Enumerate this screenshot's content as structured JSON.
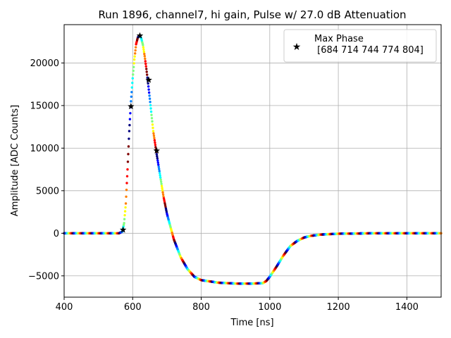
{
  "chart_data": {
    "type": "scatter",
    "title": "Run 1896, channel7, hi gain, Pulse w/ 27.0 dB Attenuation",
    "xlabel": "Time [ns]",
    "ylabel": "Amplitude [ADC Counts]",
    "xlim": [
      400,
      1500
    ],
    "ylim": [
      -7500,
      24500
    ],
    "xticks": [
      400,
      600,
      800,
      1000,
      1200,
      1400
    ],
    "yticks": [
      -5000,
      0,
      5000,
      10000,
      15000,
      20000
    ],
    "ytick_labels": [
      "−5000",
      "0",
      "5000",
      "10000",
      "15000",
      "20000"
    ],
    "grid": true,
    "legend_position": "top-right",
    "colormap": [
      "#00007f",
      "#0000ff",
      "#007fff",
      "#00ffff",
      "#7fff7f",
      "#ffff00",
      "#ff7f00",
      "#ff0000",
      "#7f0000"
    ],
    "curve": {
      "x": [
        400,
        560,
        570,
        575,
        580,
        585,
        590,
        595,
        600,
        605,
        610,
        615,
        620,
        625,
        630,
        635,
        640,
        645,
        650,
        655,
        660,
        670,
        680,
        690,
        700,
        720,
        740,
        760,
        780,
        800,
        850,
        900,
        950,
        980,
        990,
        1000,
        1020,
        1040,
        1060,
        1080,
        1100,
        1120,
        1150,
        1200,
        1300,
        1400,
        1500
      ],
      "y": [
        0,
        0,
        200,
        1200,
        3500,
        7500,
        12000,
        15500,
        18200,
        20400,
        22200,
        23000,
        23200,
        22900,
        22100,
        20800,
        19300,
        17600,
        15800,
        13900,
        12000,
        9300,
        6800,
        4300,
        2300,
        -700,
        -2800,
        -4200,
        -5100,
        -5500,
        -5800,
        -5900,
        -5900,
        -5850,
        -5600,
        -5100,
        -3900,
        -2600,
        -1500,
        -900,
        -500,
        -300,
        -150,
        -50,
        0,
        0,
        0
      ]
    },
    "series": [
      {
        "name": "Max Phase\n [684 714 744 774 804]",
        "marker": "star",
        "x": [
          572,
          595,
          621,
          647,
          670
        ],
        "y": [
          400,
          14900,
          23200,
          18000,
          9700
        ]
      }
    ]
  }
}
